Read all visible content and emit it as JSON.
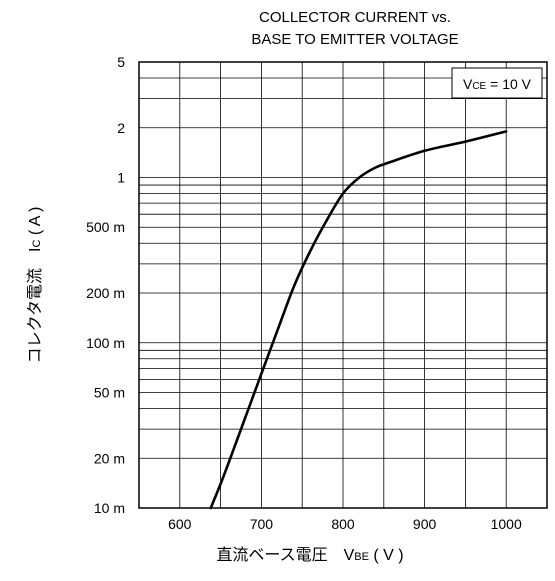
{
  "chart_data": {
    "type": "line",
    "title": [
      "COLLECTOR CURRENT vs.",
      "BASE TO EMITTER VOLTAGE"
    ],
    "annotation": {
      "main": "V",
      "sub": "CE",
      "rest": " = 10 V"
    },
    "xlabel": {
      "main": "直流ベース電圧　V",
      "sub": "BE",
      "rest": " ( V )"
    },
    "ylabel": {
      "main": "コレクタ電流　I",
      "sub": "C",
      "rest": " ( A )"
    },
    "x_scale": "linear",
    "y_scale": "log",
    "xlim": [
      550,
      1050
    ],
    "ylim": [
      0.01,
      5
    ],
    "x_ticks": [
      {
        "value": 600,
        "label": "600"
      },
      {
        "value": 700,
        "label": "700"
      },
      {
        "value": 800,
        "label": "800"
      },
      {
        "value": 900,
        "label": "900"
      },
      {
        "value": 1000,
        "label": "1000"
      }
    ],
    "y_ticks": [
      {
        "value": 5,
        "label": "5"
      },
      {
        "value": 2,
        "label": "2"
      },
      {
        "value": 1,
        "label": "1"
      },
      {
        "value": 0.5,
        "label": "500 m"
      },
      {
        "value": 0.2,
        "label": "200 m"
      },
      {
        "value": 0.1,
        "label": "100 m"
      },
      {
        "value": 0.05,
        "label": "50 m"
      },
      {
        "value": 0.02,
        "label": "20 m"
      },
      {
        "value": 0.01,
        "label": "10 m"
      }
    ],
    "grid": true,
    "legend": "none",
    "series": [
      {
        "color": "#000000",
        "x": [
          638,
          650,
          665,
          680,
          700,
          720,
          740,
          760,
          780,
          800,
          820,
          840,
          860,
          900,
          950,
          1000
        ],
        "y": [
          0.01,
          0.014,
          0.022,
          0.035,
          0.065,
          0.12,
          0.22,
          0.36,
          0.55,
          0.8,
          1.0,
          1.15,
          1.25,
          1.45,
          1.65,
          1.9
        ]
      }
    ]
  }
}
